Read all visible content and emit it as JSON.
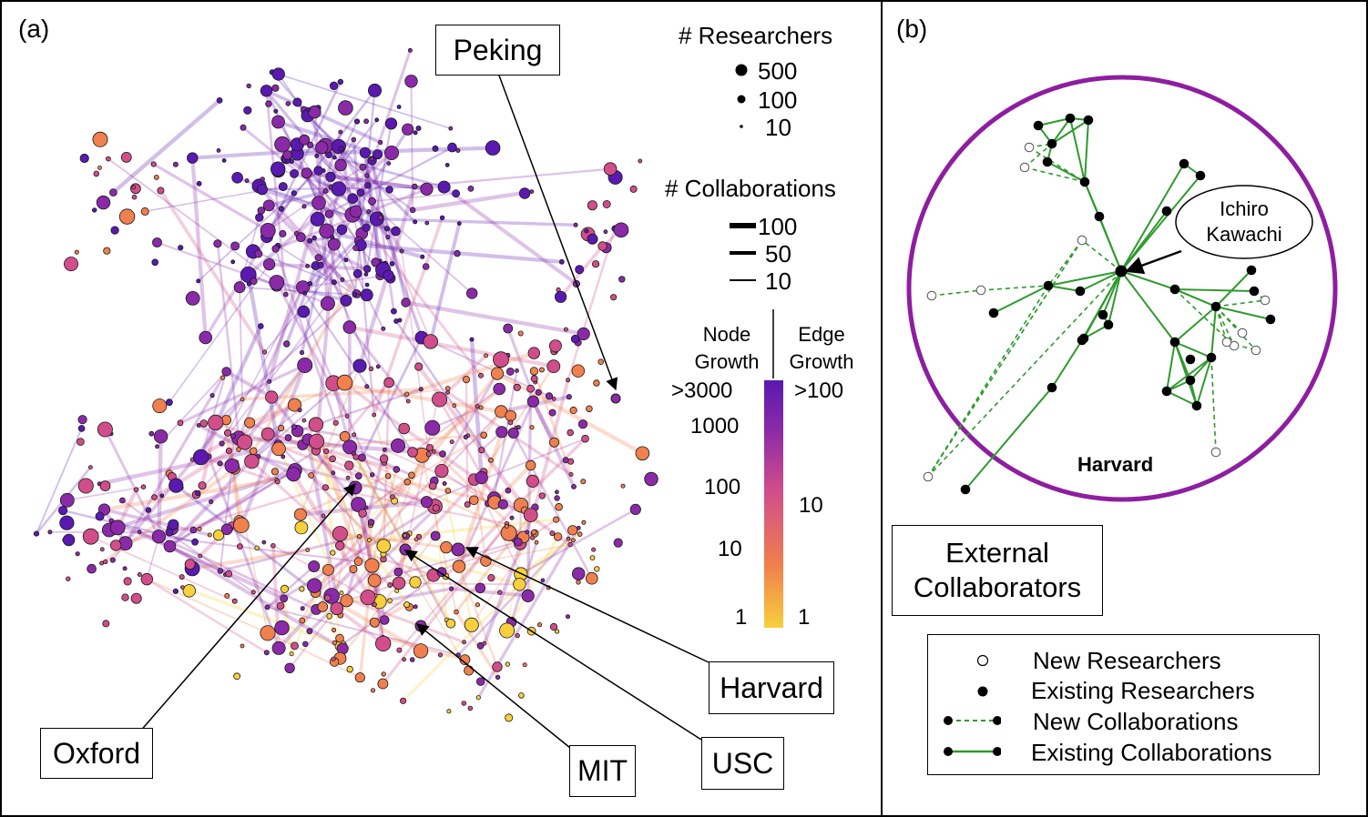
{
  "panel_a": {
    "label": "(a)",
    "callouts": {
      "peking": "Peking",
      "oxford": "Oxford",
      "harvard": "Harvard",
      "mit": "MIT",
      "usc": "USC"
    },
    "legend": {
      "researchers_title": "# Researchers",
      "researchers": [
        "500",
        "100",
        "10"
      ],
      "collaborations_title": "# Collaborations",
      "collaborations": [
        "100",
        "50",
        "10"
      ],
      "node_growth_title": [
        "Node",
        "Growth"
      ],
      "edge_growth_title": [
        "Edge",
        "Growth"
      ],
      "node_ticks": [
        ">3000",
        "1000",
        "100",
        "10",
        "1"
      ],
      "edge_ticks": [
        ">100",
        "10",
        "1"
      ]
    },
    "colors": {
      "low": "#f7d03c",
      "mid_low": "#f0804d",
      "mid": "#d14e8a",
      "high": "#8b2aa8",
      "max": "#5a19b0"
    }
  },
  "panel_b": {
    "label": "(b)",
    "ichiro": [
      "Ichiro",
      "Kawachi"
    ],
    "harvard": "Harvard",
    "external": [
      "External",
      "Collaborators"
    ],
    "legend": [
      "New Researchers",
      "Existing Researchers",
      "New Collaborations",
      "Existing Collaborations"
    ],
    "colors": {
      "circle": "#8e1ea0",
      "edge": "#2e9a2e"
    }
  }
}
